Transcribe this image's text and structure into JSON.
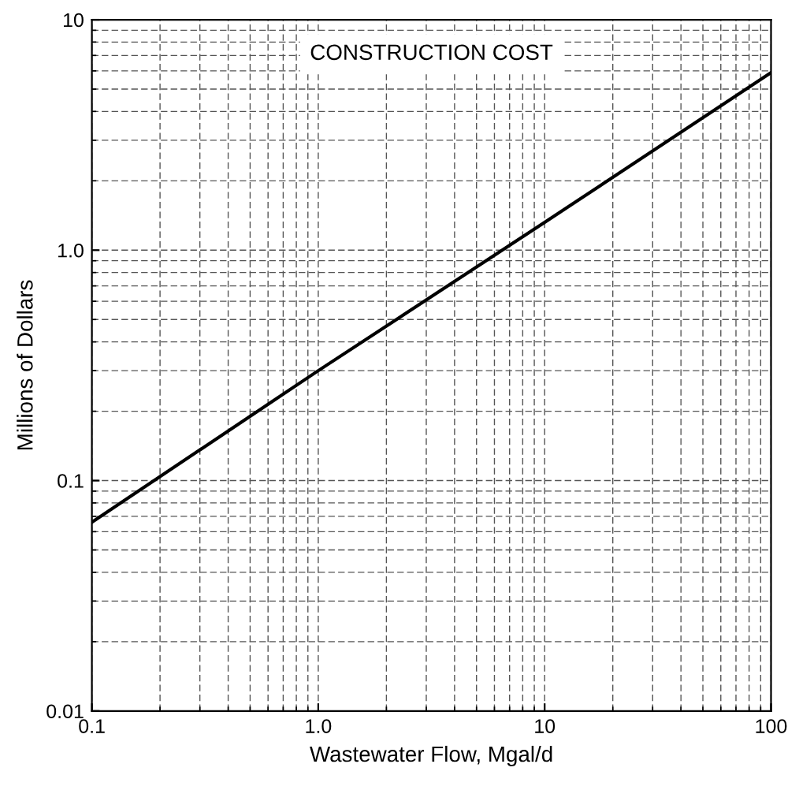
{
  "chart_data": {
    "type": "line",
    "title": "CONSTRUCTION COST",
    "xlabel": "Wastewater Flow, Mgal/d",
    "ylabel": "Millions of Dollars",
    "x": [
      0.1,
      1,
      10,
      100
    ],
    "series": [
      {
        "color": "#000000",
        "values": [
          0.066,
          0.3,
          1.32,
          5.9
        ]
      }
    ],
    "log": "xy",
    "xlim": [
      0.1,
      100
    ],
    "ylim": [
      0.01,
      10
    ],
    "xticks": [
      0.1,
      {
        "value": 1,
        "label": "1.0"
      },
      10,
      100
    ],
    "yticks": [
      0.01,
      0.1,
      {
        "value": 1,
        "label": "1.0"
      },
      10
    ],
    "grid": true,
    "marker": "none",
    "line_style": "solid"
  }
}
